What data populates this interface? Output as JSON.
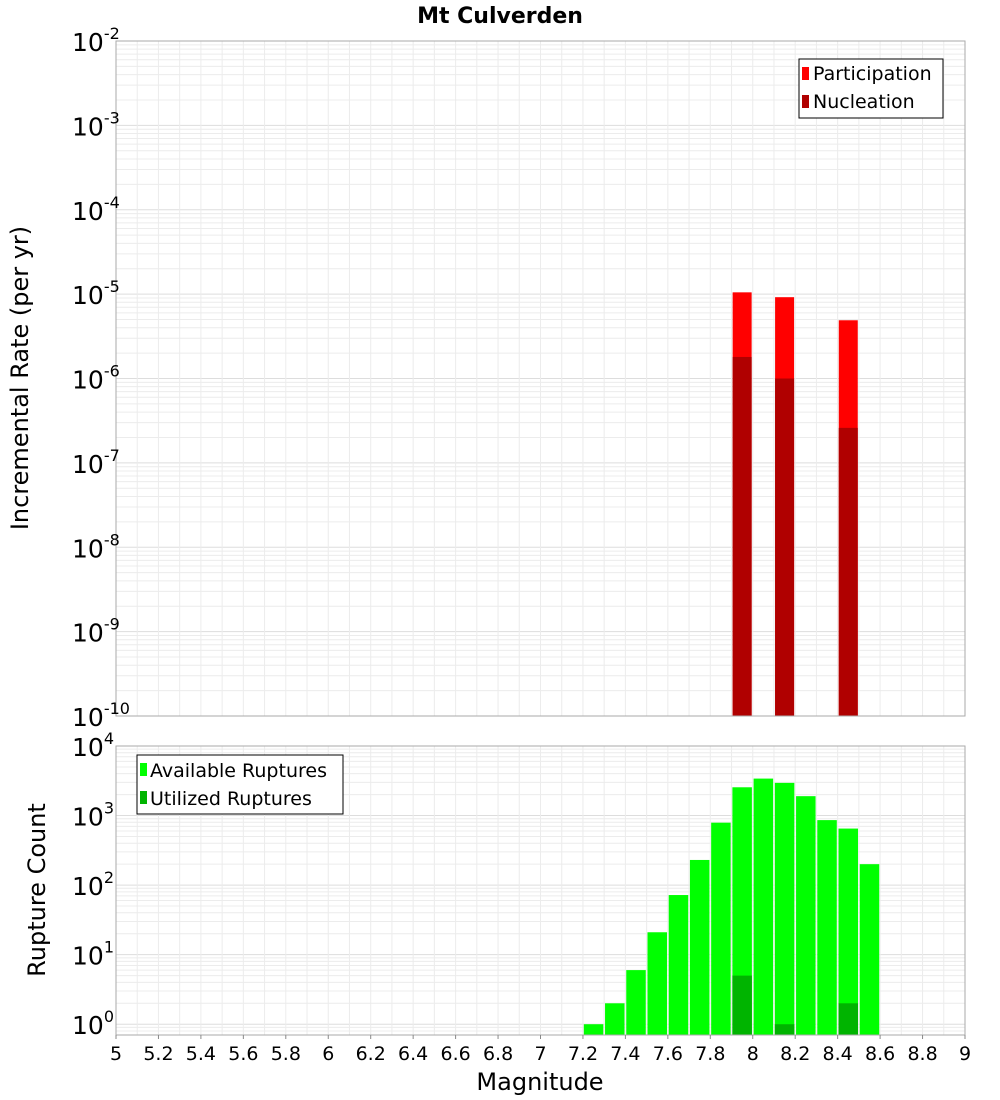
{
  "chart_data": [
    {
      "type": "bar",
      "title": "Mt Culverden",
      "ylabel": "Incremental Rate (per yr)",
      "xlabel": "",
      "yscale": "log",
      "ylim": [
        1e-10,
        0.01
      ],
      "xlim": [
        5,
        9
      ],
      "grid": true,
      "legend_position": "top-right",
      "y_ticks": [
        {
          "base": "10",
          "exp": "-10",
          "value": 1e-10
        },
        {
          "base": "10",
          "exp": "-9",
          "value": 1e-09
        },
        {
          "base": "10",
          "exp": "-8",
          "value": 1e-08
        },
        {
          "base": "10",
          "exp": "-7",
          "value": 1e-07
        },
        {
          "base": "10",
          "exp": "-6",
          "value": 1e-06
        },
        {
          "base": "10",
          "exp": "-5",
          "value": 1e-05
        },
        {
          "base": "10",
          "exp": "-4",
          "value": 0.0001
        },
        {
          "base": "10",
          "exp": "-3",
          "value": 0.001
        },
        {
          "base": "10",
          "exp": "-2",
          "value": 0.01
        }
      ],
      "series": [
        {
          "name": "Participation",
          "color": "#ff0000",
          "points": [
            {
              "x": 7.95,
              "y": 1.05e-05
            },
            {
              "x": 8.15,
              "y": 9.2e-06
            },
            {
              "x": 8.45,
              "y": 4.9e-06
            }
          ]
        },
        {
          "name": "Nucleation",
          "color": "#b00000",
          "points": [
            {
              "x": 7.95,
              "y": 1.8e-06
            },
            {
              "x": 8.15,
              "y": 1e-06
            },
            {
              "x": 8.45,
              "y": 2.6e-07
            }
          ]
        }
      ]
    },
    {
      "type": "bar",
      "title": "",
      "ylabel": "Rupture Count",
      "xlabel": "Magnitude",
      "yscale": "log",
      "ylim": [
        0.7,
        10000
      ],
      "xlim": [
        5,
        9
      ],
      "grid": true,
      "legend_position": "top-left",
      "x_ticks": [
        "5",
        "5.2",
        "5.4",
        "5.6",
        "5.8",
        "6",
        "6.2",
        "6.4",
        "6.6",
        "6.8",
        "7",
        "7.2",
        "7.4",
        "7.6",
        "7.8",
        "8",
        "8.2",
        "8.4",
        "8.6",
        "8.8",
        "9"
      ],
      "y_ticks": [
        {
          "base": "10",
          "exp": "0",
          "value": 1
        },
        {
          "base": "10",
          "exp": "1",
          "value": 10
        },
        {
          "base": "10",
          "exp": "2",
          "value": 100
        },
        {
          "base": "10",
          "exp": "3",
          "value": 1000
        },
        {
          "base": "10",
          "exp": "4",
          "value": 10000
        }
      ],
      "series": [
        {
          "name": "Available Ruptures",
          "color": "#00ff00",
          "points": [
            {
              "x": 7.25,
              "y": 1
            },
            {
              "x": 7.35,
              "y": 2
            },
            {
              "x": 7.45,
              "y": 6
            },
            {
              "x": 7.55,
              "y": 21
            },
            {
              "x": 7.65,
              "y": 72
            },
            {
              "x": 7.75,
              "y": 230
            },
            {
              "x": 7.85,
              "y": 790
            },
            {
              "x": 7.95,
              "y": 2550
            },
            {
              "x": 8.05,
              "y": 3400
            },
            {
              "x": 8.15,
              "y": 2950
            },
            {
              "x": 8.25,
              "y": 1900
            },
            {
              "x": 8.35,
              "y": 860
            },
            {
              "x": 8.45,
              "y": 650
            },
            {
              "x": 8.55,
              "y": 200
            }
          ]
        },
        {
          "name": "Utilized Ruptures",
          "color": "#00b400",
          "points": [
            {
              "x": 7.95,
              "y": 5
            },
            {
              "x": 8.15,
              "y": 1
            },
            {
              "x": 8.45,
              "y": 2
            }
          ]
        }
      ]
    }
  ]
}
